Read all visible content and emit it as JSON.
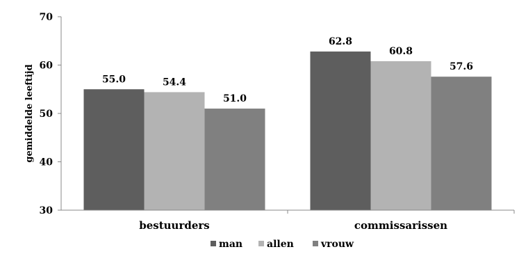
{
  "chart_data": {
    "type": "bar",
    "ylabel": "gemiddelde leeftijd",
    "xlabel": "",
    "ylim": [
      30,
      70
    ],
    "yticks": [
      30,
      40,
      50,
      60,
      70
    ],
    "grid": false,
    "legend_position": "bottom",
    "categories": [
      "bestuurders",
      "commissarissen"
    ],
    "series": [
      {
        "name": "man",
        "color": "#5e5e5e",
        "values": [
          55.0,
          62.8
        ],
        "labels": [
          "55.0",
          "62.8"
        ]
      },
      {
        "name": "allen",
        "color": "#b3b3b3",
        "values": [
          54.4,
          60.8
        ],
        "labels": [
          "54.4",
          "60.8"
        ]
      },
      {
        "name": "vrouw",
        "color": "#808080",
        "values": [
          51.0,
          57.6
        ],
        "labels": [
          "51.0",
          "57.6"
        ]
      }
    ]
  }
}
